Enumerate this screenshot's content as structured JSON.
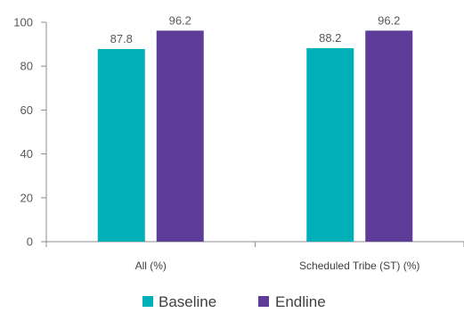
{
  "chart_data": {
    "type": "bar",
    "categories": [
      "All (%)",
      "Scheduled Tribe (ST) (%)"
    ],
    "series": [
      {
        "name": "Baseline",
        "values": [
          87.8,
          88.2
        ],
        "labels": [
          "87.8",
          "88.2"
        ],
        "color": "#00B0B9"
      },
      {
        "name": "Endline",
        "values": [
          96.2,
          96.2
        ],
        "labels": [
          "96.2",
          "96.2"
        ],
        "color": "#5E3C99"
      }
    ],
    "ylim": [
      0,
      100
    ],
    "yticks": [
      "0",
      "20",
      "40",
      "60",
      "80",
      "100"
    ],
    "grid": false,
    "legend_position": "bottom"
  }
}
